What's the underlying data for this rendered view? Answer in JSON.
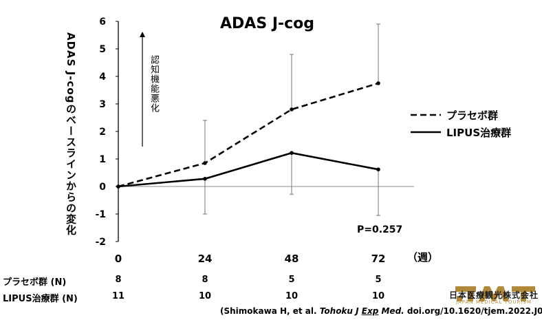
{
  "chart_data": {
    "type": "line",
    "title": "ADAS J-cog",
    "xlabel": "",
    "x_unit": "（週）",
    "ylabel": "ADAS J-cogのベースラインからの変化",
    "x": [
      0,
      24,
      48,
      72
    ],
    "x_ticks": [
      "0",
      "24",
      "48",
      "72"
    ],
    "y_ticks": [
      "-2",
      "-1",
      "0",
      "1",
      "2",
      "3",
      "4",
      "5",
      "6"
    ],
    "ylim": [
      -2,
      6
    ],
    "worsening_arrow_label": "認知機能悪化",
    "p_value_label": "P=0.257",
    "legend_position": "right",
    "series": [
      {
        "name": "プラセボ群",
        "style": "dashed",
        "values": [
          0,
          0.85,
          2.8,
          3.75
        ],
        "error_high": [
          0,
          2.4,
          4.8,
          5.9
        ],
        "error_low": [
          0,
          0.85,
          2.8,
          3.75
        ]
      },
      {
        "name": "LIPUS治療群",
        "style": "solid",
        "values": [
          0,
          0.28,
          1.22,
          0.62
        ],
        "error_high": [
          0,
          0.28,
          1.22,
          0.62
        ],
        "error_low": [
          0,
          -1.0,
          -0.28,
          -1.05
        ]
      }
    ]
  },
  "n_table": {
    "rows": [
      {
        "label": "プラセボ群 (N)",
        "values": [
          "8",
          "8",
          "5",
          "5"
        ]
      },
      {
        "label": "LIPUS治療群 (N)",
        "values": [
          "11",
          "10",
          "10",
          "10"
        ]
      }
    ]
  },
  "citation": {
    "before": "(Shimokawa H, et al.",
    "journal_a": "Tohoku J ",
    "journal_b": "Exp",
    "journal_c": " Med.",
    "after": " doi.org/10.1620/tjem.2022.J078.)"
  },
  "logo": {
    "mark": "JMT",
    "name_jp": "日本医療観光株式会社",
    "name_en": "JAPAN MEDICAL TOURISM",
    "color": "#b08a3a"
  }
}
